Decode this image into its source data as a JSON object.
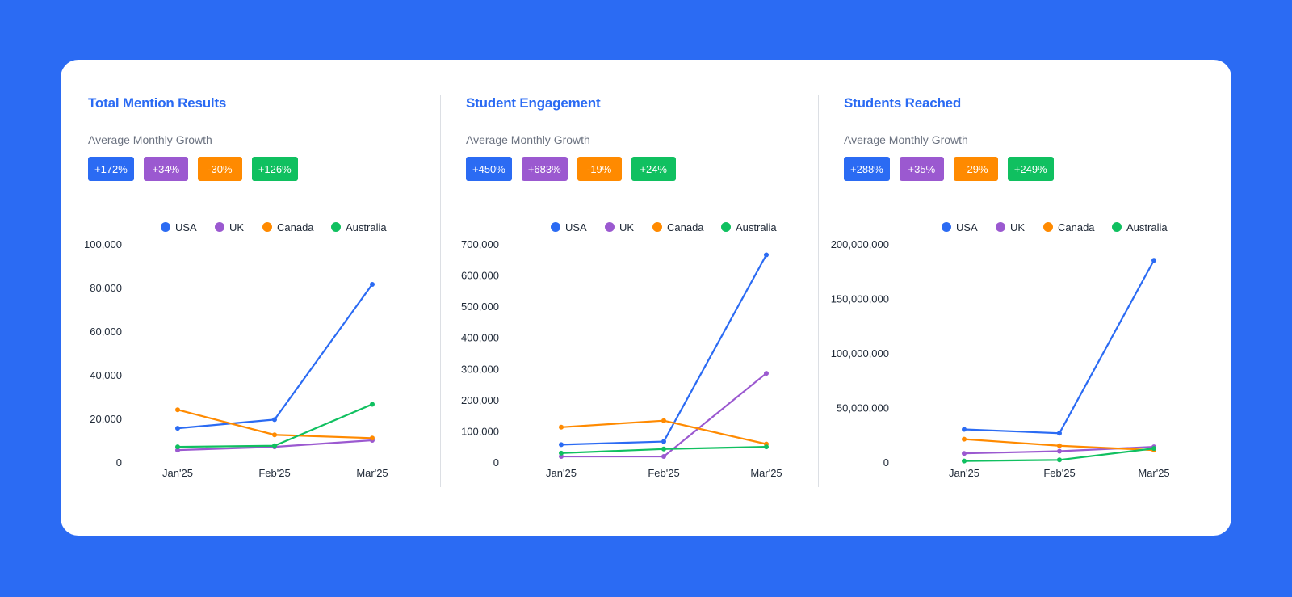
{
  "colors": {
    "USA": "#2B6BF3",
    "UK": "#9B59D0",
    "Canada": "#FF8A00",
    "Australia": "#10C060"
  },
  "panels": [
    {
      "title": "Total Mention Results",
      "subtitle": "Average Monthly Growth",
      "badges": [
        "+172%",
        "+34%",
        "-30%",
        "+126%"
      ]
    },
    {
      "title": "Student Engagement",
      "subtitle": "Average Monthly Growth",
      "badges": [
        "+450%",
        "+683%",
        "-19%",
        "+24%"
      ]
    },
    {
      "title": "Students Reached",
      "subtitle": "Average Monthly Growth",
      "badges": [
        "+288%",
        "+35%",
        "-29%",
        "+249%"
      ]
    }
  ],
  "chart_data": [
    {
      "type": "line",
      "categories": [
        "Jan'25",
        "Feb'25",
        "Mar'25"
      ],
      "ylim": [
        0,
        100000
      ],
      "yticks": [
        0,
        20000,
        40000,
        60000,
        80000,
        100000
      ],
      "legend": "top",
      "grid": false,
      "series": [
        {
          "name": "USA",
          "values": [
            15500,
            19500,
            81500
          ]
        },
        {
          "name": "UK",
          "values": [
            5500,
            7000,
            10000
          ]
        },
        {
          "name": "Canada",
          "values": [
            24000,
            12500,
            11000
          ]
        },
        {
          "name": "Australia",
          "values": [
            7000,
            7500,
            26500
          ]
        }
      ]
    },
    {
      "type": "line",
      "categories": [
        "Jan'25",
        "Feb'25",
        "Mar'25"
      ],
      "ylim": [
        0,
        700000
      ],
      "yticks": [
        0,
        100000,
        200000,
        300000,
        400000,
        500000,
        600000,
        700000
      ],
      "legend": "top",
      "grid": false,
      "series": [
        {
          "name": "USA",
          "values": [
            56000,
            66000,
            665000
          ]
        },
        {
          "name": "UK",
          "values": [
            18000,
            18000,
            285000
          ]
        },
        {
          "name": "Canada",
          "values": [
            112000,
            133000,
            58000
          ]
        },
        {
          "name": "Australia",
          "values": [
            29000,
            42000,
            49000
          ]
        }
      ]
    },
    {
      "type": "line",
      "categories": [
        "Jan'25",
        "Feb'25",
        "Mar'25"
      ],
      "ylim": [
        0,
        200000000
      ],
      "yticks": [
        0,
        50000000,
        100000000,
        150000000,
        200000000
      ],
      "legend": "top",
      "grid": false,
      "series": [
        {
          "name": "USA",
          "values": [
            30000000,
            26500000,
            185000000
          ]
        },
        {
          "name": "UK",
          "values": [
            8000000,
            10000000,
            14000000
          ]
        },
        {
          "name": "Canada",
          "values": [
            21000000,
            15000000,
            11000000
          ]
        },
        {
          "name": "Australia",
          "values": [
            1000000,
            2000000,
            12500000
          ]
        }
      ]
    }
  ]
}
